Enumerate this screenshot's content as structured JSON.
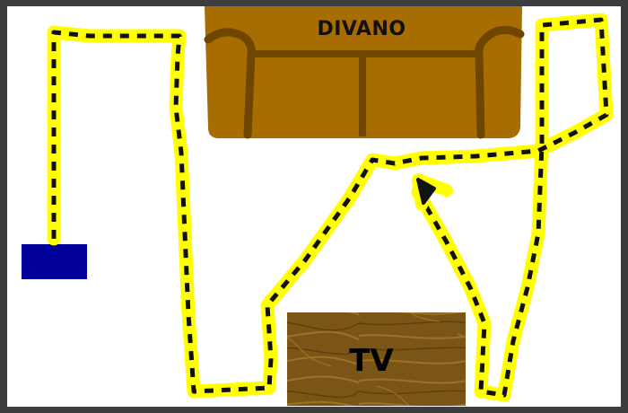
{
  "sofa": {
    "label": "DIVANO",
    "color": "#a86d00",
    "trim_color": "#6e4600"
  },
  "tv": {
    "label": "TV",
    "color": "#7a5516",
    "grain_color": "#9a7228"
  },
  "start_marker": {
    "color": "#000099"
  },
  "path": {
    "highlight_color": "#ffff00",
    "dash_color": "#111111",
    "style": "dashed line on yellow highlight"
  },
  "background": {
    "floor_color": "#ffffff",
    "border_color": "#3d3d3d"
  }
}
